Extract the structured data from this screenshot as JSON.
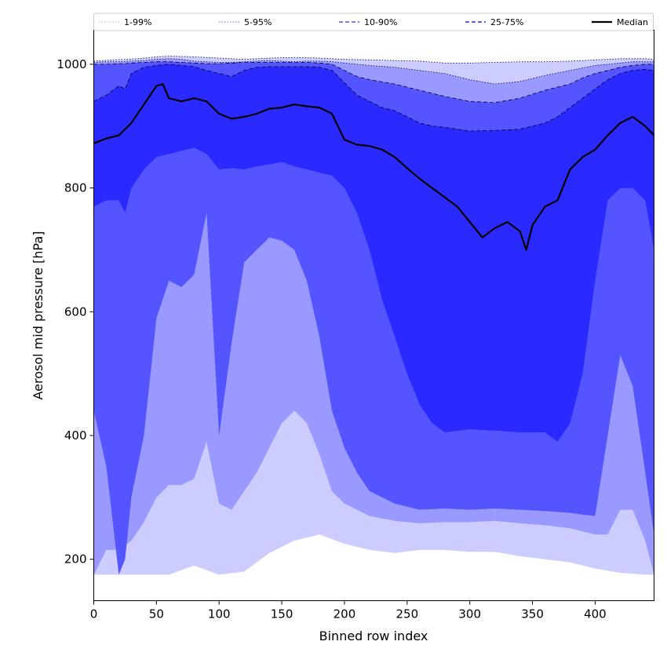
{
  "chart_data": {
    "type": "area",
    "xlabel": "Binned row index",
    "ylabel": "Aerosol mid pressure [hPa]",
    "xlim": [
      0,
      447
    ],
    "ylim": [
      133,
      1055
    ],
    "xticks": [
      "0",
      "50",
      "100",
      "150",
      "200",
      "250",
      "300",
      "350",
      "400"
    ],
    "yticks": [
      "200",
      "400",
      "600",
      "800",
      "1000"
    ],
    "legend_position": "top",
    "series": [
      {
        "name": "1-99%",
        "color": "#ccccff",
        "linestyle": "dotted",
        "x": [
          0,
          15,
          25,
          35,
          50,
          60,
          80,
          100,
          120,
          140,
          160,
          180,
          200,
          220,
          240,
          260,
          280,
          300,
          320,
          340,
          360,
          380,
          400,
          420,
          440,
          447
        ],
        "lower": [
          175,
          175,
          175,
          175,
          175,
          175,
          190,
          175,
          180,
          210,
          230,
          240,
          225,
          215,
          210,
          215,
          215,
          212,
          212,
          205,
          200,
          195,
          185,
          178,
          175,
          175
        ],
        "upper": [
          1005,
          1007,
          1008,
          1009,
          1012,
          1013,
          1012,
          1010,
          1008,
          1010,
          1011,
          1010,
          1008,
          1007,
          1006,
          1005,
          1002,
          1002,
          1003,
          1004,
          1004,
          1005,
          1007,
          1009,
          1009,
          1008
        ]
      },
      {
        "name": "5-95%",
        "color": "#9999ff",
        "linestyle": "dotted",
        "x": [
          0,
          10,
          20,
          30,
          40,
          50,
          60,
          70,
          80,
          90,
          100,
          110,
          120,
          130,
          140,
          150,
          160,
          170,
          180,
          190,
          200,
          210,
          220,
          240,
          260,
          280,
          300,
          320,
          340,
          360,
          380,
          400,
          410,
          420,
          430,
          440,
          447
        ],
        "lower": [
          175,
          215,
          215,
          230,
          260,
          300,
          320,
          320,
          330,
          390,
          290,
          280,
          310,
          340,
          380,
          420,
          440,
          420,
          370,
          310,
          290,
          280,
          270,
          262,
          258,
          260,
          260,
          262,
          258,
          255,
          250,
          240,
          240,
          280,
          280,
          230,
          175
        ],
        "upper": [
          1003,
          1004,
          1004,
          1005,
          1006,
          1008,
          1009,
          1008,
          1005,
          1004,
          1003,
          1003,
          1004,
          1005,
          1006,
          1005,
          1004,
          1005,
          1005,
          1004,
          1002,
          1000,
          998,
          995,
          990,
          985,
          975,
          968,
          972,
          982,
          990,
          998,
          1000,
          1002,
          1004,
          1004,
          1004
        ]
      },
      {
        "name": "10-90%",
        "color": "#5555ff",
        "linestyle": "dashed",
        "x": [
          0,
          10,
          20,
          25,
          30,
          40,
          50,
          60,
          70,
          80,
          90,
          100,
          110,
          120,
          130,
          140,
          150,
          160,
          170,
          180,
          190,
          200,
          210,
          220,
          240,
          260,
          280,
          300,
          320,
          340,
          360,
          380,
          390,
          400,
          410,
          420,
          430,
          440,
          447
        ],
        "lower": [
          440,
          350,
          175,
          200,
          300,
          400,
          590,
          650,
          640,
          660,
          760,
          400,
          550,
          680,
          700,
          720,
          715,
          700,
          650,
          560,
          440,
          380,
          340,
          310,
          290,
          280,
          282,
          280,
          282,
          280,
          278,
          275,
          272,
          270,
          400,
          530,
          480,
          340,
          240
        ],
        "upper": [
          1000,
          1000,
          1001,
          1001,
          1002,
          1003,
          1004,
          1004,
          1003,
          1002,
          1001,
          1001,
          1002,
          1003,
          1003,
          1003,
          1003,
          1003,
          1003,
          1002,
          1000,
          990,
          980,
          975,
          968,
          958,
          948,
          940,
          938,
          945,
          958,
          968,
          978,
          985,
          990,
          995,
          998,
          1000,
          1000
        ]
      },
      {
        "name": "25-75%",
        "color": "#2a2aff",
        "linestyle": "dashed",
        "x": [
          0,
          10,
          20,
          25,
          30,
          40,
          50,
          60,
          70,
          80,
          90,
          100,
          110,
          120,
          130,
          140,
          150,
          160,
          170,
          180,
          190,
          200,
          210,
          220,
          230,
          240,
          250,
          260,
          270,
          280,
          300,
          320,
          340,
          360,
          370,
          380,
          390,
          400,
          410,
          420,
          430,
          440,
          447
        ],
        "lower": [
          770,
          780,
          780,
          760,
          800,
          830,
          850,
          855,
          860,
          865,
          855,
          830,
          832,
          830,
          835,
          838,
          842,
          835,
          830,
          825,
          820,
          800,
          760,
          700,
          620,
          560,
          500,
          450,
          420,
          405,
          410,
          408,
          405,
          405,
          390,
          420,
          500,
          650,
          780,
          800,
          800,
          780,
          700
        ],
        "upper": [
          940,
          950,
          965,
          960,
          985,
          995,
          998,
          1000,
          998,
          996,
          990,
          985,
          980,
          990,
          995,
          996,
          996,
          996,
          996,
          995,
          990,
          970,
          950,
          940,
          930,
          925,
          915,
          905,
          900,
          898,
          892,
          893,
          895,
          905,
          915,
          930,
          945,
          960,
          975,
          985,
          990,
          992,
          990
        ]
      },
      {
        "name": "Median",
        "color": "#000000",
        "linestyle": "solid",
        "x": [
          0,
          10,
          20,
          30,
          40,
          50,
          55,
          60,
          70,
          80,
          90,
          100,
          110,
          120,
          130,
          140,
          150,
          160,
          170,
          180,
          190,
          200,
          210,
          220,
          230,
          240,
          250,
          260,
          270,
          280,
          290,
          300,
          310,
          320,
          330,
          340,
          345,
          350,
          360,
          370,
          380,
          390,
          400,
          410,
          420,
          430,
          440,
          447
        ],
        "values": [
          872,
          880,
          885,
          905,
          935,
          965,
          968,
          945,
          940,
          945,
          940,
          920,
          912,
          915,
          920,
          928,
          930,
          935,
          932,
          930,
          920,
          878,
          870,
          868,
          862,
          850,
          832,
          815,
          800,
          785,
          770,
          745,
          720,
          735,
          745,
          730,
          700,
          740,
          770,
          780,
          830,
          850,
          862,
          885,
          905,
          915,
          900,
          885
        ]
      }
    ]
  }
}
